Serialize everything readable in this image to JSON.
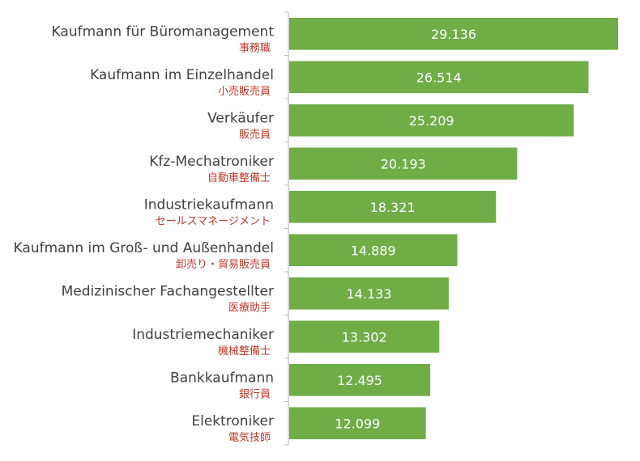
{
  "colors": {
    "bar": "#70ad47",
    "axis": "#bfbfbf",
    "label_primary": "#404040",
    "label_secondary": "#c0392b",
    "value_label": "#ffffff"
  },
  "chart_data": {
    "type": "bar",
    "orientation": "horizontal",
    "categories": [
      {
        "de": "Kaufmann für Büromanagement",
        "ja": "事務職"
      },
      {
        "de": "Kaufmann im Einzelhandel",
        "ja": "小売販売員"
      },
      {
        "de": "Verkäufer",
        "ja": "販売員"
      },
      {
        "de": "Kfz-Mechatroniker",
        "ja": "自動車整備士"
      },
      {
        "de": "Industriekaufmann",
        "ja": "セールスマネージメント"
      },
      {
        "de": "Kaufmann im Groß- und Außenhandel",
        "ja": "卸売り・貿易販売員"
      },
      {
        "de": "Medizinischer Fachangestellter",
        "ja": "医療助手"
      },
      {
        "de": "Industriemechaniker",
        "ja": "機械整備士"
      },
      {
        "de": "Bankkaufmann",
        "ja": "銀行員"
      },
      {
        "de": "Elektroniker",
        "ja": "電気技師"
      }
    ],
    "values": [
      29136,
      26514,
      25209,
      20193,
      18321,
      14889,
      14133,
      13302,
      12495,
      12099
    ],
    "value_labels": [
      "29.136",
      "26.514",
      "25.209",
      "20.193",
      "18.321",
      "14.889",
      "14.133",
      "13.302",
      "12.495",
      "12.099"
    ],
    "xlim": [
      0,
      30000
    ],
    "grid": false,
    "legend": "none"
  }
}
